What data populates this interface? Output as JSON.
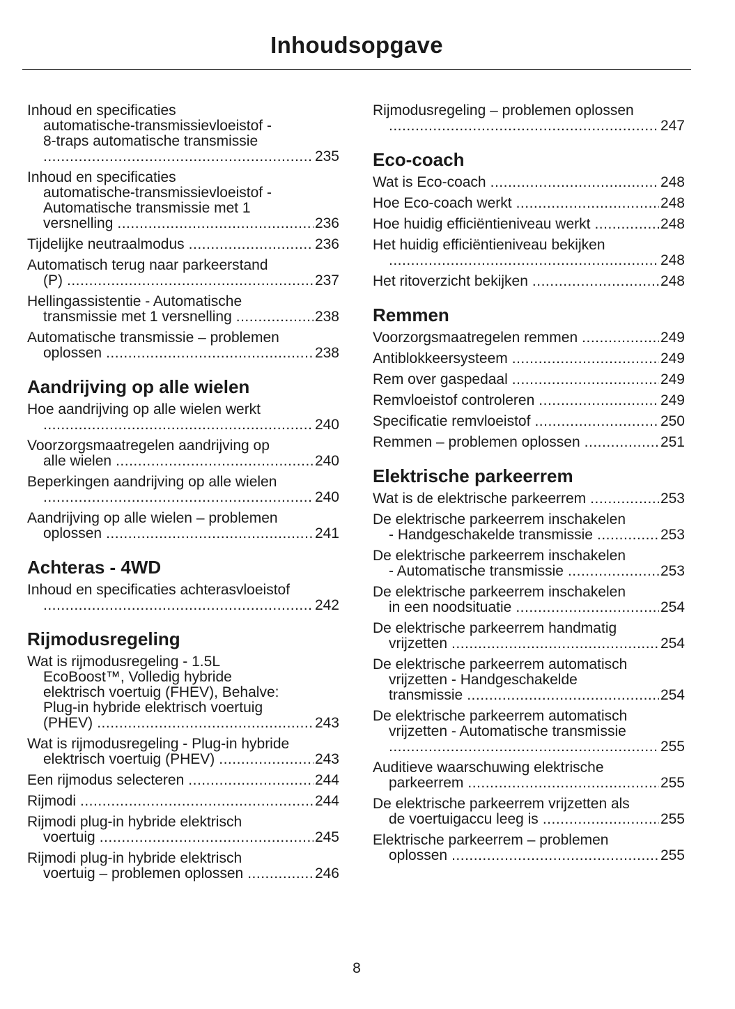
{
  "title": "Inhoudsopgave",
  "page_number": "8",
  "columns": [
    [
      {
        "type": "entry",
        "lines": [
          "Inhoud en specificaties",
          "automatische-transmissievloeistof -",
          "8-traps automatische transmissie",
          ""
        ],
        "page": "235"
      },
      {
        "type": "entry",
        "lines": [
          "Inhoud en specificaties",
          "automatische-transmissievloeistof -",
          "Automatische transmissie met 1",
          "versnelling"
        ],
        "page": "236"
      },
      {
        "type": "entry",
        "lines": [
          "Tijdelijke neutraalmodus"
        ],
        "page": "236"
      },
      {
        "type": "entry",
        "lines": [
          "Automatisch terug naar parkeerstand",
          "(P)"
        ],
        "page": "237"
      },
      {
        "type": "entry",
        "lines": [
          "Hellingassistentie - Automatische",
          "transmissie met 1 versnelling"
        ],
        "page": "238"
      },
      {
        "type": "entry",
        "lines": [
          "Automatische transmissie – problemen",
          "oplossen"
        ],
        "page": "238"
      },
      {
        "type": "heading",
        "text": "Aandrijving op alle wielen"
      },
      {
        "type": "entry",
        "lines": [
          "Hoe aandrijving op alle wielen werkt",
          ""
        ],
        "page": "240"
      },
      {
        "type": "entry",
        "lines": [
          "Voorzorgsmaatregelen aandrijving op",
          "alle wielen"
        ],
        "page": "240"
      },
      {
        "type": "entry",
        "lines": [
          "Beperkingen aandrijving op alle wielen",
          ""
        ],
        "page": "240"
      },
      {
        "type": "entry",
        "lines": [
          "Aandrijving op alle wielen – problemen",
          "oplossen"
        ],
        "page": "241"
      },
      {
        "type": "heading",
        "text": "Achteras - 4WD"
      },
      {
        "type": "entry",
        "lines": [
          "Inhoud en specificaties achterasvloeistof",
          ""
        ],
        "page": "242"
      },
      {
        "type": "heading",
        "text": "Rijmodusregeling"
      },
      {
        "type": "entry",
        "lines": [
          "Wat is rijmodusregeling - 1.5L",
          "EcoBoost™, Volledig hybride",
          "elektrisch voertuig (FHEV), Behalve:",
          "Plug-in hybride elektrisch voertuig",
          "(PHEV)"
        ],
        "page": "243"
      },
      {
        "type": "entry",
        "lines": [
          "Wat is rijmodusregeling - Plug-in hybride",
          "elektrisch voertuig (PHEV)"
        ],
        "page": "243"
      },
      {
        "type": "entry",
        "lines": [
          "Een rijmodus selecteren"
        ],
        "page": "244"
      },
      {
        "type": "entry",
        "lines": [
          "Rijmodi"
        ],
        "page": "244"
      },
      {
        "type": "entry",
        "lines": [
          "Rijmodi plug-in hybride elektrisch",
          "voertuig"
        ],
        "page": "245"
      },
      {
        "type": "entry",
        "lines": [
          "Rijmodi plug-in hybride elektrisch",
          "voertuig – problemen oplossen"
        ],
        "page": "246"
      }
    ],
    [
      {
        "type": "entry",
        "lines": [
          "Rijmodusregeling – problemen oplossen",
          ""
        ],
        "page": "247"
      },
      {
        "type": "heading",
        "text": "Eco-coach"
      },
      {
        "type": "entry",
        "lines": [
          "Wat is Eco-coach"
        ],
        "page": "248"
      },
      {
        "type": "entry",
        "lines": [
          "Hoe Eco-coach werkt"
        ],
        "page": "248"
      },
      {
        "type": "entry",
        "lines": [
          "Hoe huidig efficiëntieniveau werkt"
        ],
        "page": "248"
      },
      {
        "type": "entry",
        "lines": [
          "Het huidig efficiëntieniveau bekijken",
          ""
        ],
        "page": "248"
      },
      {
        "type": "entry",
        "lines": [
          "Het ritoverzicht bekijken"
        ],
        "page": "248"
      },
      {
        "type": "heading",
        "text": "Remmen"
      },
      {
        "type": "entry",
        "lines": [
          "Voorzorgsmaatregelen remmen"
        ],
        "page": "249"
      },
      {
        "type": "entry",
        "lines": [
          "Antiblokkeersysteem"
        ],
        "page": "249"
      },
      {
        "type": "entry",
        "lines": [
          "Rem over gaspedaal"
        ],
        "page": "249"
      },
      {
        "type": "entry",
        "lines": [
          "Remvloeistof controleren"
        ],
        "page": "249"
      },
      {
        "type": "entry",
        "lines": [
          "Specificatie remvloeistof"
        ],
        "page": "250"
      },
      {
        "type": "entry",
        "lines": [
          "Remmen – problemen oplossen"
        ],
        "page": "251"
      },
      {
        "type": "heading",
        "text": "Elektrische parkeerrem"
      },
      {
        "type": "entry",
        "lines": [
          "Wat is de elektrische parkeerrem"
        ],
        "page": "253"
      },
      {
        "type": "entry",
        "lines": [
          "De elektrische parkeerrem inschakelen",
          "- Handgeschakelde transmissie"
        ],
        "page": "253"
      },
      {
        "type": "entry",
        "lines": [
          "De elektrische parkeerrem inschakelen",
          "- Automatische transmissie"
        ],
        "page": "253"
      },
      {
        "type": "entry",
        "lines": [
          "De elektrische parkeerrem inschakelen",
          "in een noodsituatie"
        ],
        "page": "254"
      },
      {
        "type": "entry",
        "lines": [
          "De elektrische parkeerrem handmatig",
          "vrijzetten"
        ],
        "page": "254"
      },
      {
        "type": "entry",
        "lines": [
          "De elektrische parkeerrem automatisch",
          "vrijzetten - Handgeschakelde",
          "transmissie"
        ],
        "page": "254"
      },
      {
        "type": "entry",
        "lines": [
          "De elektrische parkeerrem automatisch",
          "vrijzetten - Automatische transmissie",
          ""
        ],
        "page": "255"
      },
      {
        "type": "entry",
        "lines": [
          "Auditieve waarschuwing elektrische",
          "parkeerrem"
        ],
        "page": "255"
      },
      {
        "type": "entry",
        "lines": [
          "De elektrische parkeerrem vrijzetten als",
          "de voertuigaccu leeg is"
        ],
        "page": "255"
      },
      {
        "type": "entry",
        "lines": [
          "Elektrische parkeerrem – problemen",
          "oplossen"
        ],
        "page": "255"
      }
    ]
  ]
}
